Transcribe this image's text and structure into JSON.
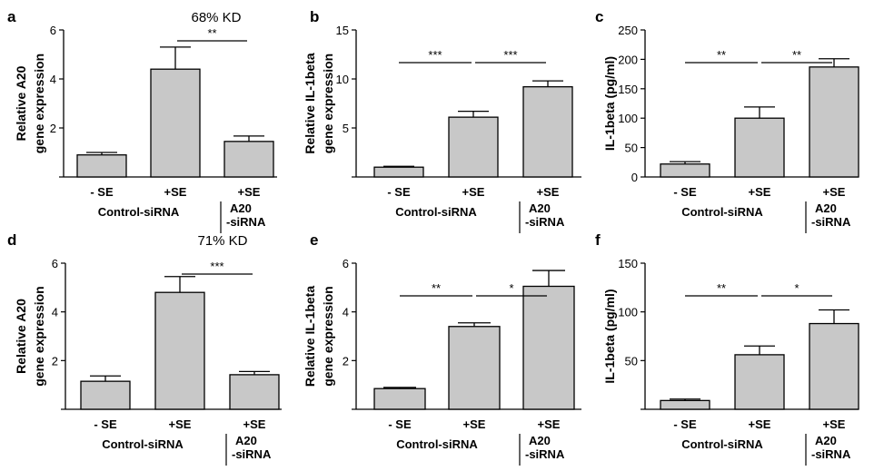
{
  "chart_data": [
    {
      "panel": "a",
      "type": "bar",
      "annotation": "68% KD",
      "ylabel": "Relative A20\ngene expression",
      "ylim": [
        0,
        6
      ],
      "yticks": [
        "",
        "2",
        "4",
        "6"
      ],
      "categories": [
        "- SE",
        "+SE",
        "+SE"
      ],
      "values": [
        0.9,
        4.4,
        1.45
      ],
      "errors": [
        0.1,
        0.9,
        0.22
      ],
      "groups": [
        {
          "label": "Control-siRNA",
          "span": [
            0,
            1
          ]
        },
        {
          "label": "A20\n-siRNA",
          "span": [
            2,
            2
          ]
        }
      ],
      "significance": [
        {
          "from": 1,
          "to": 2,
          "label": "**"
        }
      ]
    },
    {
      "panel": "b",
      "type": "bar",
      "annotation": "",
      "ylabel": "Relative IL-1beta\ngene expression",
      "ylim": [
        0,
        15
      ],
      "yticks": [
        "",
        "5",
        "10",
        "15"
      ],
      "categories": [
        "- SE",
        "+SE",
        "+SE"
      ],
      "values": [
        1.0,
        6.1,
        9.2
      ],
      "errors": [
        0.08,
        0.6,
        0.6
      ],
      "groups": [
        {
          "label": "Control-siRNA",
          "span": [
            0,
            1
          ]
        },
        {
          "label": "A20\n-siRNA",
          "span": [
            2,
            2
          ]
        }
      ],
      "significance": [
        {
          "from": 0,
          "to": 1,
          "label": "***"
        },
        {
          "from": 1,
          "to": 2,
          "label": "***"
        }
      ]
    },
    {
      "panel": "c",
      "type": "bar",
      "annotation": "",
      "ylabel": "IL-1beta (pg/ml)",
      "ylim": [
        0,
        250
      ],
      "yticks": [
        "0",
        "50",
        "100",
        "150",
        "200",
        "250"
      ],
      "categories": [
        "- SE",
        "+SE",
        "+SE"
      ],
      "values": [
        22,
        100,
        187
      ],
      "errors": [
        4,
        19,
        14
      ],
      "groups": [
        {
          "label": "Control-siRNA",
          "span": [
            0,
            1
          ]
        },
        {
          "label": "A20\n-siRNA",
          "span": [
            2,
            2
          ]
        }
      ],
      "significance": [
        {
          "from": 0,
          "to": 1,
          "label": "**"
        },
        {
          "from": 1,
          "to": 2,
          "label": "**"
        }
      ]
    },
    {
      "panel": "d",
      "type": "bar",
      "annotation": "71% KD",
      "ylabel": "Relative A20\ngene expression",
      "ylim": [
        0,
        6
      ],
      "yticks": [
        "",
        "2",
        "4",
        "6"
      ],
      "categories": [
        "- SE",
        "+SE",
        "+SE"
      ],
      "values": [
        1.15,
        4.8,
        1.42
      ],
      "errors": [
        0.22,
        0.65,
        0.13
      ],
      "groups": [
        {
          "label": "Control-siRNA",
          "span": [
            0,
            1
          ]
        },
        {
          "label": "A20\n-siRNA",
          "span": [
            2,
            2
          ]
        }
      ],
      "significance": [
        {
          "from": 1,
          "to": 2,
          "label": "***"
        }
      ]
    },
    {
      "panel": "e",
      "type": "bar",
      "annotation": "",
      "ylabel": "Relative IL-1beta\ngene expression",
      "ylim": [
        0,
        6
      ],
      "yticks": [
        "",
        "2",
        "4",
        "6"
      ],
      "categories": [
        "- SE",
        "+SE",
        "+SE"
      ],
      "values": [
        0.85,
        3.4,
        5.05
      ],
      "errors": [
        0.05,
        0.15,
        0.65
      ],
      "groups": [
        {
          "label": "Control-siRNA",
          "span": [
            0,
            1
          ]
        },
        {
          "label": "A20\n-siRNA",
          "span": [
            2,
            2
          ]
        }
      ],
      "significance": [
        {
          "from": 0,
          "to": 1,
          "label": "**"
        },
        {
          "from": 1,
          "to": 2,
          "label": "*"
        }
      ]
    },
    {
      "panel": "f",
      "type": "bar",
      "annotation": "",
      "ylabel": "IL-1beta (pg/ml)",
      "ylim": [
        0,
        150
      ],
      "yticks": [
        "",
        "50",
        "100",
        "150"
      ],
      "categories": [
        "- SE",
        "+SE",
        "+SE"
      ],
      "values": [
        9,
        56,
        88
      ],
      "errors": [
        1.5,
        9,
        14
      ],
      "groups": [
        {
          "label": "Control-siRNA",
          "span": [
            0,
            1
          ]
        },
        {
          "label": "A20\n-siRNA",
          "span": [
            2,
            2
          ]
        }
      ],
      "significance": [
        {
          "from": 0,
          "to": 1,
          "label": "**"
        },
        {
          "from": 1,
          "to": 2,
          "label": "*"
        }
      ]
    }
  ],
  "colors": {
    "bar_fill": "#c8c8c8",
    "stroke": "#000000"
  }
}
